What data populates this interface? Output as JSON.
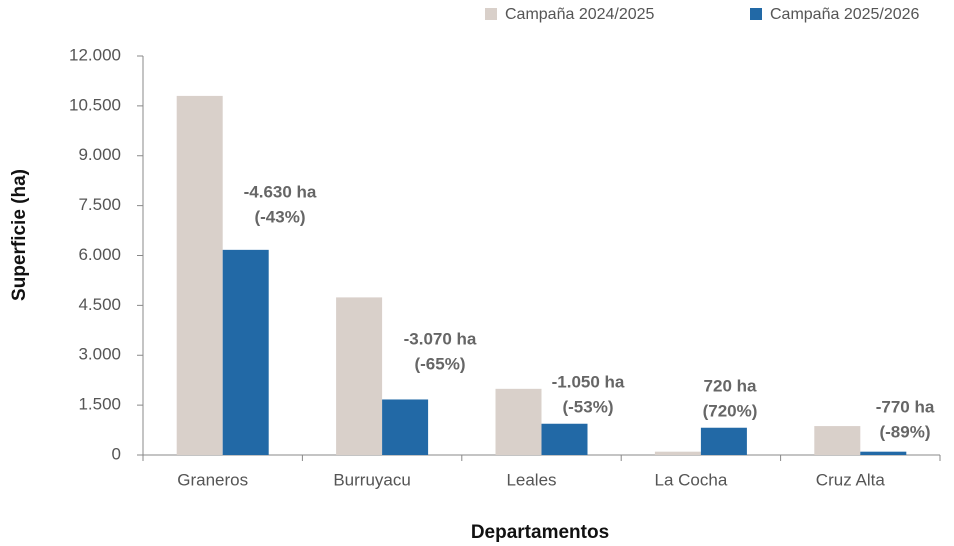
{
  "chart_data": {
    "type": "bar",
    "x_label": "Departamentos",
    "y_label": "Superficie (ha)",
    "categories": [
      "Graneros",
      "Burruyacu",
      "Leales",
      "La Cocha",
      "Cruz Alta"
    ],
    "series": [
      {
        "name": "Campaña 2024/2025",
        "color": "#d9d0ca",
        "values": [
          10800,
          4740,
          1990,
          100,
          870
        ]
      },
      {
        "name": "Campaña 2025/2026",
        "color": "#2269a6",
        "values": [
          6170,
          1670,
          940,
          820,
          100
        ]
      }
    ],
    "annotations": [
      {
        "lines": [
          "-4.630 ha",
          "(-43%)"
        ]
      },
      {
        "lines": [
          "-3.070 ha",
          "(-65%)"
        ]
      },
      {
        "lines": [
          "-1.050 ha",
          "(-53%)"
        ]
      },
      {
        "lines": [
          "720 ha",
          "(720%)"
        ]
      },
      {
        "lines": [
          "-770 ha",
          "(-89%)"
        ]
      }
    ],
    "ylim": [
      0,
      12000
    ],
    "yticks": [
      0,
      {
        "value": 1500,
        "label": "1.500"
      },
      {
        "value": 3000,
        "label": "3.000"
      },
      {
        "value": 4500,
        "label": "4.500"
      },
      {
        "value": 6000,
        "label": "6.000"
      },
      {
        "value": 7500,
        "label": "7.500"
      },
      {
        "value": 9000,
        "label": "9.000"
      },
      {
        "value": 10500,
        "label": "10.500"
      },
      {
        "value": 12000,
        "label": "12.000"
      }
    ],
    "grid": false,
    "legend": "top-right"
  }
}
